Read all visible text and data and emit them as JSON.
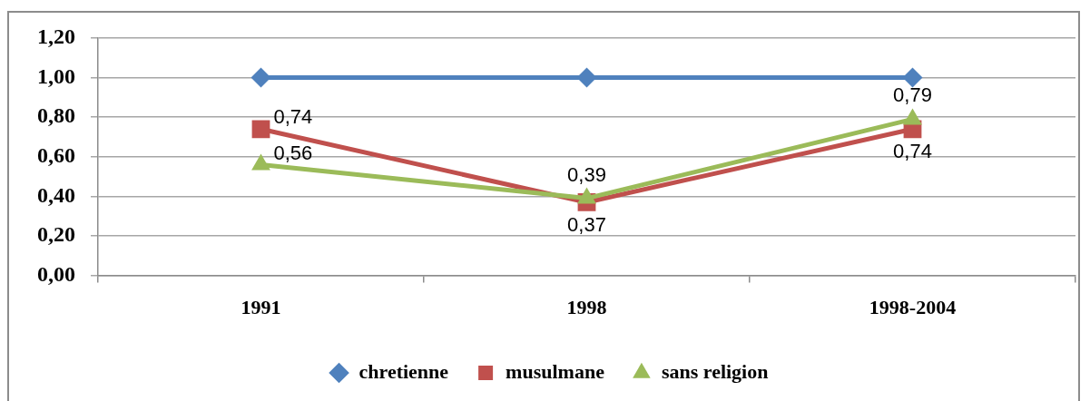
{
  "chart_data": {
    "type": "line",
    "categories": [
      "1991",
      "1998",
      "1998-2004"
    ],
    "series": [
      {
        "name": "chretienne",
        "color": "#4f81bd",
        "marker": "diamond",
        "values": [
          1,
          1,
          1
        ]
      },
      {
        "name": "musulmane",
        "color": "#c0504d",
        "marker": "square",
        "values": [
          0.74,
          0.37,
          0.74
        ],
        "value_labels": [
          "0,74",
          "0,37",
          "0,74"
        ]
      },
      {
        "name": "sans religion",
        "color": "#9bbb59",
        "marker": "triangle",
        "values": [
          0.56,
          0.39,
          0.79
        ],
        "value_labels": [
          "0,56",
          "0,39",
          "0,79"
        ]
      }
    ],
    "ylim": [
      0,
      1.2
    ],
    "yticks": [
      {
        "value": 0,
        "label": "0,00"
      },
      {
        "value": 0.2,
        "label": "0,20"
      },
      {
        "value": 0.4,
        "label": "0,40"
      },
      {
        "value": 0.6,
        "label": "0,60"
      },
      {
        "value": 0.8,
        "label": "0,80"
      },
      {
        "value": 1,
        "label": "1,00"
      },
      {
        "value": 1.2,
        "label": "1,20"
      }
    ],
    "grid": "y",
    "legend": "bottom",
    "line_style": "solid"
  }
}
